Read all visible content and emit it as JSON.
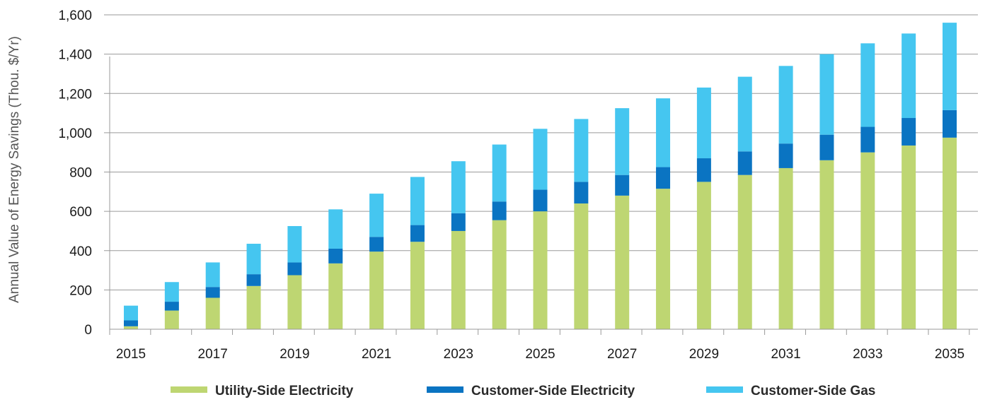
{
  "chart_data": {
    "type": "bar",
    "stacked": true,
    "title": "",
    "xlabel": "",
    "ylabel": "Annual Value of Energy Savings (Thou. $/Yr)",
    "ylim": [
      0,
      1600
    ],
    "yticks": [
      0,
      200,
      400,
      600,
      800,
      1000,
      1200,
      1400,
      1600
    ],
    "ytick_labels": [
      "0",
      "200",
      "400",
      "600",
      "800",
      "1,000",
      "1,200",
      "1,400",
      "1,600"
    ],
    "categories": [
      2015,
      2016,
      2017,
      2018,
      2019,
      2020,
      2021,
      2022,
      2023,
      2024,
      2025,
      2026,
      2027,
      2028,
      2029,
      2030,
      2031,
      2032,
      2033,
      2034,
      2035
    ],
    "xtick_labels": [
      "2015",
      "2017",
      "2019",
      "2021",
      "2023",
      "2025",
      "2027",
      "2029",
      "2031",
      "2033",
      "2035"
    ],
    "grid": "horizontal",
    "legend_position": "bottom",
    "series": [
      {
        "name": "Utility-Side Electricity",
        "color": "#bed672",
        "values": [
          15,
          95,
          160,
          220,
          275,
          335,
          395,
          445,
          500,
          555,
          600,
          640,
          680,
          715,
          750,
          785,
          820,
          860,
          900,
          935,
          975
        ]
      },
      {
        "name": "Customer-Side Electricity",
        "color": "#0a74c2",
        "values": [
          30,
          45,
          55,
          60,
          65,
          75,
          75,
          85,
          90,
          95,
          110,
          110,
          105,
          110,
          120,
          120,
          125,
          130,
          130,
          140,
          140
        ]
      },
      {
        "name": "Customer-Side Gas",
        "color": "#45c6f0",
        "values": [
          75,
          100,
          125,
          155,
          185,
          200,
          220,
          245,
          265,
          290,
          310,
          320,
          340,
          350,
          360,
          380,
          395,
          410,
          425,
          430,
          445
        ]
      }
    ]
  }
}
